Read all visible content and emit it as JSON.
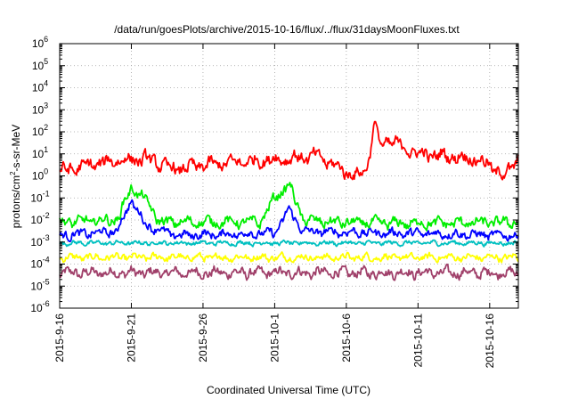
{
  "chart_data": {
    "type": "line",
    "title": "/data/run/goesPlots/archive/2015-10-16/flux/../flux/31daysMoonFluxes.txt",
    "xlabel": "Coordinated Universal Time (UTC)",
    "ylabel_main": "protons/cm",
    "ylabel_sup": "2",
    "ylabel_rest": "-s-sr-MeV",
    "yscale": "log",
    "ylim_exp": [
      -6,
      6
    ],
    "ytick_base": "10",
    "ytick_exponents": [
      "-6",
      "-5",
      "-4",
      "-3",
      "-2",
      "-1",
      "0",
      "1",
      "2",
      "3",
      "4",
      "5",
      "6"
    ],
    "xlim_days": [
      "2015-09-16",
      "2015-10-18"
    ],
    "xticks": [
      "2015-9-16",
      "2015-9-21",
      "2015-9-26",
      "2015-10-1",
      "2015-10-6",
      "2015-10-11",
      "2015-10-16"
    ],
    "grid": true,
    "legend": "none",
    "series": [
      {
        "color": "#ff0000",
        "base_dates": [
          "2015-09-16",
          "2015-09-18",
          "2015-09-20",
          "2015-09-22",
          "2015-09-24",
          "2015-09-26",
          "2015-09-28",
          "2015-09-30",
          "2015-10-02",
          "2015-10-04",
          "2015-10-06",
          "2015-10-07",
          "2015-10-08",
          "2015-10-09",
          "2015-10-11",
          "2015-10-13",
          "2015-10-15",
          "2015-10-16",
          "2015-10-17",
          "2015-10-18"
        ],
        "base_values": [
          1.5,
          3,
          5,
          6,
          2,
          3,
          4,
          5,
          6,
          8,
          1.5,
          1,
          15,
          40,
          10,
          8,
          6,
          3,
          1,
          6
        ],
        "noise_decades": 0.45,
        "spikes": [
          {
            "date": "2015-10-08",
            "value": 300
          }
        ]
      },
      {
        "color": "#00ee00",
        "base_dates": [
          "2015-09-16",
          "2015-09-20",
          "2015-09-21",
          "2015-09-22",
          "2015-09-23",
          "2015-09-30",
          "2015-10-01",
          "2015-10-02",
          "2015-10-03",
          "2015-10-05",
          "2015-10-10",
          "2015-10-18"
        ],
        "base_values": [
          0.008,
          0.01,
          0.3,
          0.08,
          0.008,
          0.008,
          0.1,
          0.4,
          0.01,
          0.008,
          0.007,
          0.008
        ],
        "noise_decades": 0.35,
        "spikes": []
      },
      {
        "color": "#0000ff",
        "base_dates": [
          "2015-09-16",
          "2015-09-20",
          "2015-09-21",
          "2015-09-22",
          "2015-09-24",
          "2015-10-01",
          "2015-10-02",
          "2015-10-03",
          "2015-10-18"
        ],
        "base_values": [
          0.002,
          0.003,
          0.08,
          0.006,
          0.002,
          0.0025,
          0.03,
          0.003,
          0.002
        ],
        "noise_decades": 0.3,
        "spikes": []
      },
      {
        "color": "#00c0c0",
        "base_dates": [
          "2015-09-16",
          "2015-10-18"
        ],
        "base_values": [
          0.0009,
          0.0009
        ],
        "noise_decades": 0.15,
        "spikes": []
      },
      {
        "color": "#ffff00",
        "base_dates": [
          "2015-09-16",
          "2015-10-18"
        ],
        "base_values": [
          0.0002,
          0.0002
        ],
        "noise_decades": 0.25,
        "spikes": []
      },
      {
        "color": "#a0406a",
        "base_dates": [
          "2015-09-16",
          "2015-10-18"
        ],
        "base_values": [
          4e-05,
          4e-05
        ],
        "noise_decades": 0.35,
        "spikes": []
      }
    ]
  }
}
